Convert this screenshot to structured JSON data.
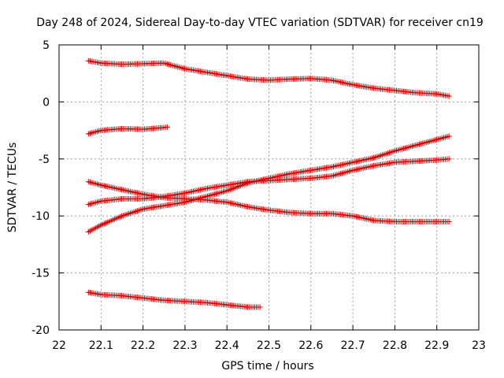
{
  "chart_data": {
    "type": "scatter",
    "title": "Day 248 of 2024, Sidereal Day-to-day VTEC variation (SDTVAR) for receiver cn19",
    "xlabel": "GPS time / hours",
    "ylabel": "SDTVAR / TECUs",
    "xlim": [
      22,
      23
    ],
    "ylim": [
      -20,
      5
    ],
    "x_ticks": [
      "22",
      "22.1",
      "22.2",
      "22.3",
      "22.4",
      "22.5",
      "22.6",
      "22.7",
      "22.8",
      "22.9",
      "23"
    ],
    "y_ticks": [
      "5",
      "0",
      "-5",
      "-10",
      "-15",
      "-20"
    ],
    "grid": true,
    "marker": "+",
    "color": "#cc0000",
    "series": [
      {
        "name": "series-1",
        "x": [
          22.07,
          22.1,
          22.15,
          22.2,
          22.25,
          22.3,
          22.35,
          22.4,
          22.45,
          22.5,
          22.55,
          22.6,
          22.65,
          22.7,
          22.75,
          22.8,
          22.85,
          22.9,
          22.93
        ],
        "y": [
          3.6,
          3.4,
          3.3,
          3.35,
          3.4,
          2.9,
          2.6,
          2.3,
          2.0,
          1.9,
          2.0,
          2.05,
          1.9,
          1.5,
          1.2,
          1.0,
          0.8,
          0.7,
          0.5
        ]
      },
      {
        "name": "series-2",
        "x": [
          22.07,
          22.1,
          22.15,
          22.2,
          22.25,
          22.26
        ],
        "y": [
          -2.8,
          -2.5,
          -2.35,
          -2.4,
          -2.25,
          -2.2
        ]
      },
      {
        "name": "series-3",
        "x": [
          22.07,
          22.1,
          22.15,
          22.2,
          22.25,
          22.3,
          22.35,
          22.4,
          22.45,
          22.5,
          22.55,
          22.6,
          22.65,
          22.7,
          22.75,
          22.8,
          22.85,
          22.9,
          22.93
        ],
        "y": [
          -7.0,
          -7.3,
          -7.7,
          -8.1,
          -8.4,
          -8.5,
          -8.6,
          -8.8,
          -9.2,
          -9.5,
          -9.7,
          -9.8,
          -9.8,
          -10.0,
          -10.4,
          -10.5,
          -10.5,
          -10.5,
          -10.5
        ]
      },
      {
        "name": "series-4",
        "x": [
          22.07,
          22.1,
          22.15,
          22.2,
          22.25,
          22.3,
          22.35,
          22.4,
          22.45,
          22.5,
          22.55,
          22.6,
          22.65,
          22.7,
          22.75,
          22.8,
          22.85,
          22.9,
          22.93
        ],
        "y": [
          -9.0,
          -8.7,
          -8.5,
          -8.5,
          -8.3,
          -8.0,
          -7.6,
          -7.3,
          -7.0,
          -6.9,
          -6.8,
          -6.7,
          -6.5,
          -6.0,
          -5.6,
          -5.3,
          -5.2,
          -5.1,
          -5.0
        ]
      },
      {
        "name": "series-5",
        "x": [
          22.07,
          22.1,
          22.15,
          22.2,
          22.25,
          22.3,
          22.35,
          22.4,
          22.45,
          22.5,
          22.55,
          22.6,
          22.65,
          22.7,
          22.75,
          22.8,
          22.85,
          22.9,
          22.93
        ],
        "y": [
          -11.4,
          -10.8,
          -10.0,
          -9.4,
          -9.1,
          -8.8,
          -8.3,
          -7.8,
          -7.1,
          -6.7,
          -6.3,
          -6.0,
          -5.7,
          -5.3,
          -4.9,
          -4.3,
          -3.8,
          -3.3,
          -3.0
        ]
      },
      {
        "name": "series-6",
        "x": [
          22.07,
          22.1,
          22.15,
          22.2,
          22.25,
          22.3,
          22.35,
          22.4,
          22.45,
          22.48
        ],
        "y": [
          -16.7,
          -16.9,
          -17.0,
          -17.2,
          -17.4,
          -17.5,
          -17.6,
          -17.8,
          -18.0,
          -18.0
        ]
      }
    ]
  }
}
